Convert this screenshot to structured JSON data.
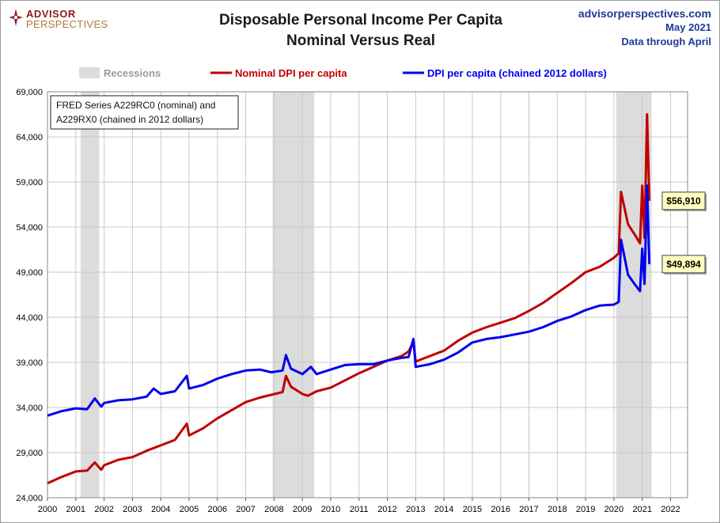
{
  "brand": {
    "line1": "ADVISOR",
    "line2": "PERSPECTIVES"
  },
  "title": {
    "line1": "Disposable Personal Income Per Capita",
    "line2": "Nominal Versus Real"
  },
  "source": {
    "site": "advisorperspectives.com",
    "date": "May 2021",
    "note": "Data through April"
  },
  "note_box": {
    "line1": "FRED Series A229RC0 (nominal) and",
    "line2": "A229RX0 (chained in 2012 dollars)"
  },
  "colors": {
    "nominal": "#c00000",
    "real": "#0000ee",
    "recession": "#dcdcdc",
    "source_text": "#1f3a93"
  },
  "chart_data": {
    "type": "line",
    "title": "Disposable Personal Income Per Capita Nominal Versus Real",
    "xlabel": "",
    "ylabel": "",
    "xlim": [
      2000,
      2022.6
    ],
    "ylim": [
      24000,
      69000
    ],
    "x_ticks": [
      "2000",
      "2001",
      "2002",
      "2003",
      "2004",
      "2005",
      "2006",
      "2007",
      "2008",
      "2009",
      "2010",
      "2011",
      "2012",
      "2013",
      "2014",
      "2015",
      "2016",
      "2017",
      "2018",
      "2019",
      "2020",
      "2021",
      "2022"
    ],
    "y_ticks": [
      "24,000",
      "29,000",
      "34,000",
      "39,000",
      "44,000",
      "49,000",
      "54,000",
      "59,000",
      "64,000",
      "69,000"
    ],
    "grid": true,
    "legend": [
      {
        "name": "Recessions",
        "kind": "band"
      },
      {
        "name": "Nominal DPI per capita",
        "kind": "line"
      },
      {
        "name": "DPI per capita (chained 2012 dollars)",
        "kind": "line"
      }
    ],
    "recessions": [
      [
        2001.17,
        2001.83
      ],
      [
        2007.95,
        2009.42
      ],
      [
        2020.08,
        2021.33
      ]
    ],
    "series": [
      {
        "name": "Nominal DPI per capita",
        "color": "#c00000",
        "points": [
          [
            2000.0,
            25600
          ],
          [
            2000.5,
            26300
          ],
          [
            2001.0,
            26900
          ],
          [
            2001.4,
            27000
          ],
          [
            2001.67,
            27900
          ],
          [
            2001.9,
            27100
          ],
          [
            2002.0,
            27600
          ],
          [
            2002.5,
            28200
          ],
          [
            2003.0,
            28500
          ],
          [
            2003.5,
            29200
          ],
          [
            2004.0,
            29800
          ],
          [
            2004.5,
            30400
          ],
          [
            2004.92,
            32200
          ],
          [
            2005.0,
            30900
          ],
          [
            2005.5,
            31700
          ],
          [
            2006.0,
            32800
          ],
          [
            2006.5,
            33700
          ],
          [
            2007.0,
            34600
          ],
          [
            2007.5,
            35100
          ],
          [
            2007.9,
            35400
          ],
          [
            2008.3,
            35700
          ],
          [
            2008.42,
            37500
          ],
          [
            2008.6,
            36300
          ],
          [
            2009.0,
            35500
          ],
          [
            2009.2,
            35300
          ],
          [
            2009.5,
            35800
          ],
          [
            2010.0,
            36200
          ],
          [
            2010.5,
            37000
          ],
          [
            2011.0,
            37800
          ],
          [
            2011.5,
            38500
          ],
          [
            2012.0,
            39200
          ],
          [
            2012.5,
            39700
          ],
          [
            2012.75,
            40200
          ],
          [
            2012.92,
            41300
          ],
          [
            2013.0,
            39100
          ],
          [
            2013.5,
            39700
          ],
          [
            2014.0,
            40300
          ],
          [
            2014.5,
            41400
          ],
          [
            2015.0,
            42300
          ],
          [
            2015.5,
            42900
          ],
          [
            2016.0,
            43400
          ],
          [
            2016.5,
            43900
          ],
          [
            2017.0,
            44700
          ],
          [
            2017.5,
            45600
          ],
          [
            2018.0,
            46700
          ],
          [
            2018.5,
            47800
          ],
          [
            2019.0,
            49000
          ],
          [
            2019.5,
            49600
          ],
          [
            2020.0,
            50600
          ],
          [
            2020.17,
            51100
          ],
          [
            2020.25,
            57900
          ],
          [
            2020.5,
            54300
          ],
          [
            2020.75,
            53100
          ],
          [
            2020.92,
            52200
          ],
          [
            2021.0,
            58600
          ],
          [
            2021.08,
            52800
          ],
          [
            2021.17,
            66500
          ],
          [
            2021.25,
            56910
          ]
        ]
      },
      {
        "name": "DPI per capita (chained 2012 dollars)",
        "color": "#0000ee",
        "points": [
          [
            2000.0,
            33100
          ],
          [
            2000.5,
            33600
          ],
          [
            2001.0,
            33900
          ],
          [
            2001.4,
            33800
          ],
          [
            2001.67,
            35000
          ],
          [
            2001.9,
            34100
          ],
          [
            2002.0,
            34500
          ],
          [
            2002.5,
            34800
          ],
          [
            2003.0,
            34900
          ],
          [
            2003.5,
            35200
          ],
          [
            2003.75,
            36100
          ],
          [
            2004.0,
            35500
          ],
          [
            2004.5,
            35800
          ],
          [
            2004.92,
            37500
          ],
          [
            2005.0,
            36100
          ],
          [
            2005.5,
            36500
          ],
          [
            2006.0,
            37200
          ],
          [
            2006.5,
            37700
          ],
          [
            2007.0,
            38100
          ],
          [
            2007.5,
            38200
          ],
          [
            2007.9,
            37900
          ],
          [
            2008.3,
            38100
          ],
          [
            2008.42,
            39800
          ],
          [
            2008.6,
            38300
          ],
          [
            2009.0,
            37700
          ],
          [
            2009.3,
            38500
          ],
          [
            2009.5,
            37700
          ],
          [
            2010.0,
            38200
          ],
          [
            2010.5,
            38700
          ],
          [
            2011.0,
            38800
          ],
          [
            2011.5,
            38800
          ],
          [
            2012.0,
            39200
          ],
          [
            2012.5,
            39500
          ],
          [
            2012.75,
            39600
          ],
          [
            2012.92,
            41600
          ],
          [
            2013.0,
            38500
          ],
          [
            2013.5,
            38800
          ],
          [
            2014.0,
            39300
          ],
          [
            2014.5,
            40100
          ],
          [
            2015.0,
            41200
          ],
          [
            2015.5,
            41600
          ],
          [
            2016.0,
            41800
          ],
          [
            2016.5,
            42100
          ],
          [
            2017.0,
            42400
          ],
          [
            2017.5,
            42900
          ],
          [
            2018.0,
            43600
          ],
          [
            2018.5,
            44100
          ],
          [
            2019.0,
            44800
          ],
          [
            2019.5,
            45300
          ],
          [
            2020.0,
            45400
          ],
          [
            2020.17,
            45700
          ],
          [
            2020.25,
            52600
          ],
          [
            2020.5,
            48700
          ],
          [
            2020.75,
            47600
          ],
          [
            2020.92,
            46900
          ],
          [
            2021.0,
            51600
          ],
          [
            2021.08,
            47700
          ],
          [
            2021.17,
            58600
          ],
          [
            2021.25,
            49894
          ]
        ]
      }
    ],
    "annotations": [
      {
        "text": "$56,910",
        "x": 2021.25,
        "y": 56910,
        "series": "Nominal DPI per capita"
      },
      {
        "text": "$49,894",
        "x": 2021.25,
        "y": 49894,
        "series": "DPI per capita (chained 2012 dollars)"
      }
    ]
  }
}
